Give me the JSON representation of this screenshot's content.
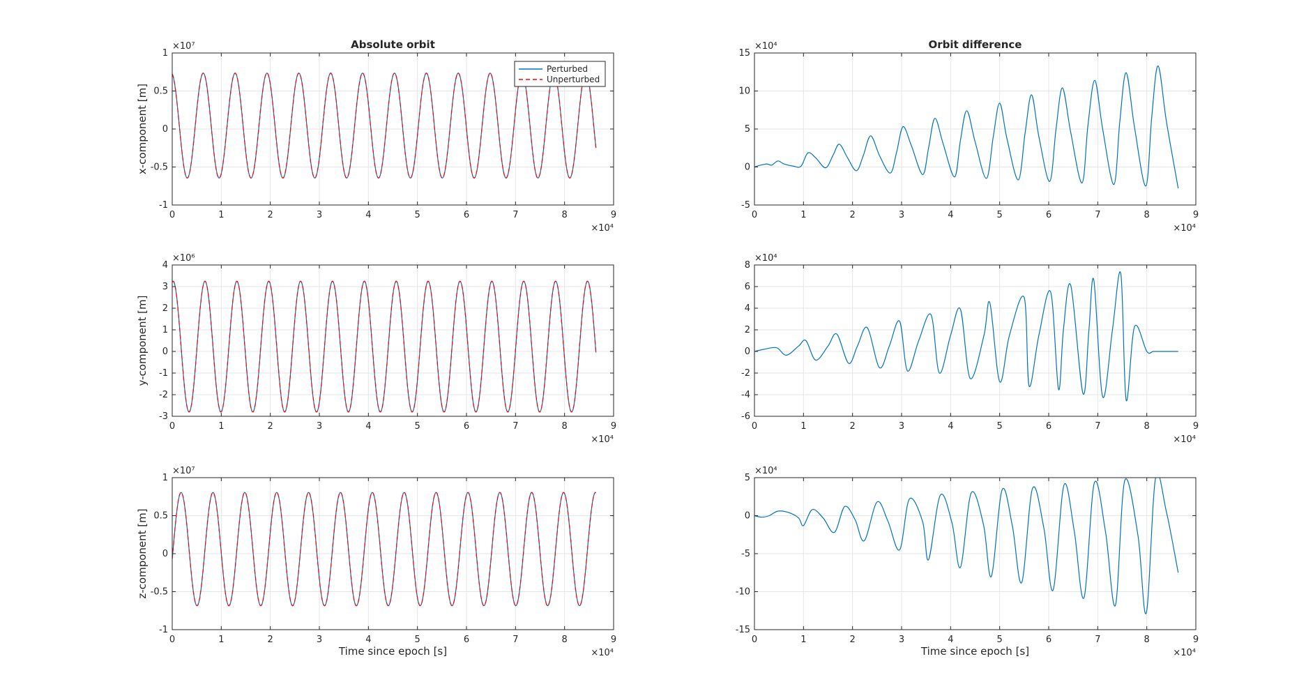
{
  "chart_data": [
    {
      "id": "abs-x",
      "type": "line",
      "title": "Absolute orbit",
      "xlabel": "",
      "ylabel": "x-component [m]",
      "xlim": [
        0,
        90000
      ],
      "ylim": [
        -10000000,
        10000000
      ],
      "xticks": [
        0,
        10000,
        20000,
        30000,
        40000,
        50000,
        60000,
        70000,
        80000,
        90000
      ],
      "xtick_labels": [
        "0",
        "1",
        "2",
        "3",
        "4",
        "5",
        "6",
        "7",
        "8",
        "9"
      ],
      "yticks": [
        -10000000,
        -5000000,
        0,
        5000000,
        10000000
      ],
      "ytick_labels": [
        "-1",
        "-0.5",
        "0",
        "0.5",
        "1"
      ],
      "x_exponent": "×10⁴",
      "y_exponent": "×10⁷",
      "grid": true,
      "legend": "top-right",
      "model": {
        "kind": "sine",
        "x_end": 86400,
        "period": 6500,
        "mean": 450000,
        "amp": 6900000,
        "phase_deg": 100
      },
      "series": [
        {
          "name": "Perturbed",
          "color": "#0072BD",
          "style": "solid"
        },
        {
          "name": "Unperturbed",
          "color": "#FF0000",
          "style": "dashed"
        }
      ]
    },
    {
      "id": "abs-y",
      "type": "line",
      "title": "",
      "xlabel": "",
      "ylabel": "y-component [m]",
      "xlim": [
        0,
        90000
      ],
      "ylim": [
        -3000000,
        4000000
      ],
      "xticks": [
        0,
        10000,
        20000,
        30000,
        40000,
        50000,
        60000,
        70000,
        80000,
        90000
      ],
      "xtick_labels": [
        "0",
        "1",
        "2",
        "3",
        "4",
        "5",
        "6",
        "7",
        "8",
        "9"
      ],
      "yticks": [
        -3000000,
        -2000000,
        -1000000,
        0,
        1000000,
        2000000,
        3000000,
        4000000
      ],
      "ytick_labels": [
        "-3",
        "-2",
        "-1",
        "0",
        "1",
        "2",
        "3",
        "4"
      ],
      "x_exponent": "×10⁴",
      "y_exponent": "×10⁶",
      "grid": true,
      "model": {
        "kind": "sine",
        "x_end": 86400,
        "period": 6500,
        "mean": 225000,
        "amp": 3025000,
        "phase_deg": 80
      },
      "series": [
        {
          "name": "Perturbed",
          "color": "#0072BD",
          "style": "solid"
        },
        {
          "name": "Unperturbed",
          "color": "#FF0000",
          "style": "dashed"
        }
      ]
    },
    {
      "id": "abs-z",
      "type": "line",
      "title": "",
      "xlabel": "Time since epoch [s]",
      "ylabel": "z-component [m]",
      "xlim": [
        0,
        90000
      ],
      "ylim": [
        -10000000,
        10000000
      ],
      "xticks": [
        0,
        10000,
        20000,
        30000,
        40000,
        50000,
        60000,
        70000,
        80000,
        90000
      ],
      "xtick_labels": [
        "0",
        "1",
        "2",
        "3",
        "4",
        "5",
        "6",
        "7",
        "8",
        "9"
      ],
      "yticks": [
        -10000000,
        -5000000,
        0,
        5000000,
        10000000
      ],
      "ytick_labels": [
        "-1",
        "-0.5",
        "0",
        "0.5",
        "1"
      ],
      "x_exponent": "×10⁴",
      "y_exponent": "×10⁷",
      "grid": true,
      "model": {
        "kind": "sine",
        "x_end": 86400,
        "period": 6500,
        "mean": 600000,
        "amp": 7450000,
        "phase_deg": -10
      },
      "series": [
        {
          "name": "Perturbed",
          "color": "#0072BD",
          "style": "solid"
        },
        {
          "name": "Unperturbed",
          "color": "#FF0000",
          "style": "dashed"
        }
      ]
    },
    {
      "id": "diff-x",
      "type": "line",
      "title": "Orbit difference",
      "xlabel": "",
      "ylabel": "",
      "xlim": [
        0,
        90000
      ],
      "ylim": [
        -50000,
        150000
      ],
      "xticks": [
        0,
        10000,
        20000,
        30000,
        40000,
        50000,
        60000,
        70000,
        80000,
        90000
      ],
      "xtick_labels": [
        "0",
        "1",
        "2",
        "3",
        "4",
        "5",
        "6",
        "7",
        "8",
        "9"
      ],
      "yticks": [
        -50000,
        0,
        50000,
        100000,
        150000
      ],
      "ytick_labels": [
        "-5",
        "0",
        "5",
        "10",
        "15"
      ],
      "x_exponent": "×10⁴",
      "y_exponent": "×10⁴",
      "grid": true,
      "series": [
        {
          "name": "",
          "color": "#0072BD",
          "style": "solid",
          "x": [
            0,
            1000,
            2500,
            3500,
            4800,
            6000,
            8000,
            9500,
            10900,
            12500,
            14500,
            16000,
            17300,
            19000,
            20800,
            22200,
            23700,
            25500,
            27700,
            29000,
            30300,
            32000,
            34300,
            35500,
            36800,
            38500,
            40800,
            42000,
            43300,
            45000,
            47300,
            48700,
            50000,
            51500,
            53800,
            55200,
            56500,
            58000,
            60200,
            61500,
            62800,
            64500,
            66800,
            68000,
            69400,
            71000,
            73300,
            74500,
            75800,
            77500,
            79800,
            81000,
            82300,
            84000,
            86400
          ],
          "y": [
            0,
            2000,
            4000,
            2500,
            8000,
            4000,
            1000,
            1000,
            18500,
            12000,
            -1000,
            15000,
            30000,
            12000,
            -5000,
            15000,
            41000,
            15000,
            -8000,
            20000,
            53000,
            28000,
            -10000,
            25000,
            64000,
            30000,
            -13000,
            35000,
            74000,
            33000,
            -15000,
            40000,
            84000,
            37000,
            -17000,
            45000,
            95000,
            40000,
            -19000,
            50000,
            104000,
            45000,
            -21000,
            55000,
            114000,
            50000,
            -23000,
            60000,
            124000,
            52000,
            -25000,
            65000,
            133000,
            60000,
            -28000
          ]
        }
      ]
    },
    {
      "id": "diff-y",
      "type": "line",
      "title": "",
      "xlabel": "",
      "ylabel": "",
      "xlim": [
        0,
        90000
      ],
      "ylim": [
        -60000,
        80000
      ],
      "xticks": [
        0,
        10000,
        20000,
        30000,
        40000,
        50000,
        60000,
        70000,
        80000,
        90000
      ],
      "xtick_labels": [
        "0",
        "1",
        "2",
        "3",
        "4",
        "5",
        "6",
        "7",
        "8",
        "9"
      ],
      "yticks": [
        -60000,
        -40000,
        -20000,
        0,
        20000,
        40000,
        60000,
        80000
      ],
      "ytick_labels": [
        "-6",
        "-4",
        "-2",
        "0",
        "2",
        "4",
        "6",
        "8"
      ],
      "x_exponent": "×10⁴",
      "y_exponent": "×10⁴",
      "grid": true,
      "series": [
        {
          "name": "",
          "color": "#0072BD",
          "style": "solid",
          "x": [
            0,
            2000,
            4500,
            6500,
            9000,
            10500,
            12500,
            15000,
            16800,
            19200,
            21000,
            23000,
            25500,
            27500,
            29600,
            31200,
            33500,
            36000,
            37700,
            40000,
            42000,
            44000,
            46800,
            48000,
            50000,
            52000,
            55000,
            56000,
            58000,
            60400,
            62000,
            63000,
            64500,
            67000,
            68200,
            69200,
            71000,
            73000,
            74700,
            75800,
            77500,
            80000,
            81300,
            82500,
            84000,
            86400
          ],
          "y": [
            0,
            2000,
            3500,
            -3500,
            5000,
            10000,
            -8000,
            5000,
            16000,
            -11000,
            5000,
            22000,
            -15000,
            5000,
            28000,
            -18000,
            10000,
            34000,
            -20000,
            15000,
            39000,
            -25000,
            15000,
            45000,
            -28000,
            15000,
            50000,
            -32000,
            15000,
            55000,
            -35000,
            20000,
            61000,
            -39000,
            20000,
            66000,
            -42000,
            20000,
            72000,
            -45000,
            23000,
            0,
            0,
            0,
            0,
            0
          ]
        }
      ]
    },
    {
      "id": "diff-z",
      "type": "line",
      "title": "",
      "xlabel": "Time since epoch [s]",
      "ylabel": "",
      "xlim": [
        0,
        90000
      ],
      "ylim": [
        -150000,
        50000
      ],
      "xticks": [
        0,
        10000,
        20000,
        30000,
        40000,
        50000,
        60000,
        70000,
        80000,
        90000
      ],
      "xtick_labels": [
        "0",
        "1",
        "2",
        "3",
        "4",
        "5",
        "6",
        "7",
        "8",
        "9"
      ],
      "yticks": [
        -150000,
        -100000,
        -50000,
        0,
        50000
      ],
      "ytick_labels": [
        "-15",
        "-10",
        "-5",
        "0",
        "5"
      ],
      "x_exponent": "×10⁴",
      "y_exponent": "×10⁴",
      "grid": true,
      "series": [
        {
          "name": "",
          "color": "#0072BD",
          "style": "solid",
          "x": [
            0,
            1500,
            3000,
            4800,
            7000,
            9000,
            10000,
            11800,
            14000,
            16300,
            18400,
            20500,
            22400,
            25000,
            27200,
            29600,
            31600,
            34300,
            35500,
            37900,
            40300,
            42000,
            44200,
            46700,
            48300,
            50500,
            52600,
            54500,
            56700,
            59000,
            60900,
            63100,
            65200,
            67200,
            69300,
            71600,
            73600,
            75500,
            78200,
            79900,
            81800,
            84000,
            86400
          ],
          "y": [
            0,
            -2000,
            0,
            6000,
            4000,
            -3000,
            -13000,
            8000,
            -3000,
            -22000,
            12000,
            -5000,
            -33000,
            18000,
            -7000,
            -45000,
            22000,
            -8000,
            -58000,
            27000,
            -10000,
            -68000,
            30000,
            -12000,
            -80000,
            34000,
            -14000,
            -88000,
            36000,
            -16000,
            -98000,
            40000,
            -20000,
            -108000,
            43000,
            -22000,
            -118000,
            46000,
            -26000,
            -128000,
            50000,
            5000,
            -75000
          ]
        }
      ]
    }
  ]
}
